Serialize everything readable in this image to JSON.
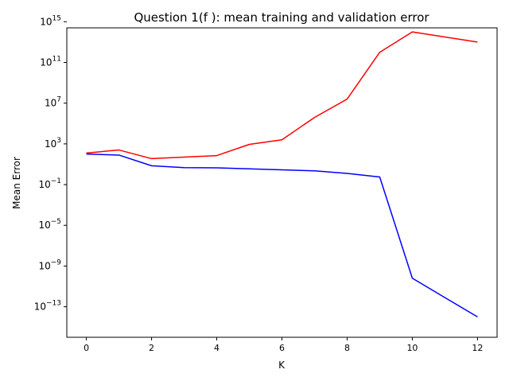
{
  "chart_data": {
    "type": "line",
    "title": "Question 1(f ): mean training and validation error",
    "xlabel": "K",
    "ylabel": "Mean Error",
    "yscale": "log",
    "xlim": [
      -0.6,
      12.6
    ],
    "ylim_log10": [
      -16.0,
      14.4
    ],
    "grid": false,
    "legend": "none",
    "xticks": [
      {
        "value": 0,
        "label": "0"
      },
      {
        "value": 2,
        "label": "2"
      },
      {
        "value": 4,
        "label": "4"
      },
      {
        "value": 6,
        "label": "6"
      },
      {
        "value": 8,
        "label": "8"
      },
      {
        "value": 10,
        "label": "10"
      },
      {
        "value": 12,
        "label": "12"
      }
    ],
    "yticks": [
      {
        "exp": -13,
        "base": "10",
        "sup": "−13"
      },
      {
        "exp": -9,
        "base": "10",
        "sup": "−9"
      },
      {
        "exp": -5,
        "base": "10",
        "sup": "−5"
      },
      {
        "exp": -1,
        "base": "10",
        "sup": "−1"
      },
      {
        "exp": 3,
        "base": "10",
        "sup": "3"
      },
      {
        "exp": 7,
        "base": "10",
        "sup": "7"
      },
      {
        "exp": 11,
        "base": "10",
        "sup": "11"
      },
      {
        "exp": 15,
        "base": "10",
        "sup": "15"
      }
    ],
    "x": [
      0,
      1,
      2,
      3,
      4,
      5,
      6,
      7,
      8,
      9,
      10,
      11,
      12
    ],
    "series": [
      {
        "color": "#ff0000",
        "log10_values": [
          2.1,
          2.4,
          1.55,
          1.7,
          1.85,
          2.95,
          3.4,
          5.6,
          7.4,
          12.0,
          14.0,
          13.5,
          13.0
        ]
      },
      {
        "color": "#0000ff",
        "log10_values": [
          2.0,
          1.9,
          0.85,
          0.67,
          0.65,
          0.55,
          0.45,
          0.35,
          0.1,
          -0.25,
          -10.2,
          -12.1,
          -14.0
        ]
      }
    ]
  }
}
